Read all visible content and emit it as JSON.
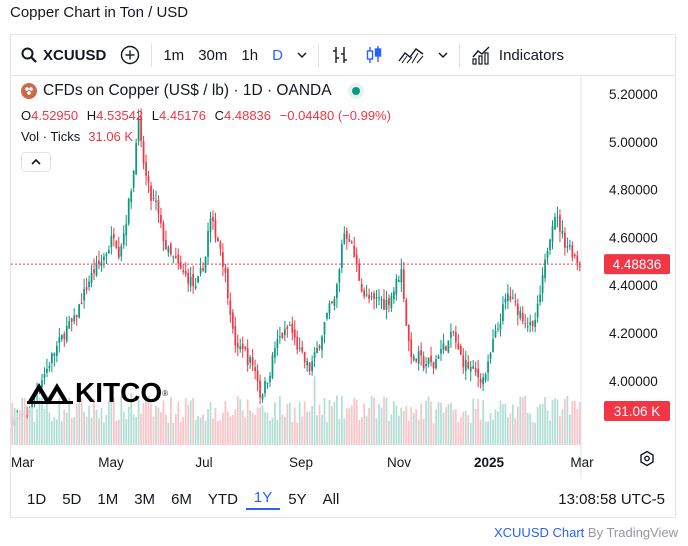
{
  "page_title": "Copper Chart in Ton / USD",
  "toolbar": {
    "symbol": "XCUUSD",
    "intervals": [
      "1m",
      "30m",
      "1h",
      "D"
    ],
    "active_interval": "D",
    "indicators_label": "Indicators"
  },
  "legend": {
    "instrument": "CFDs on Copper (US$ / lb) · 1D · OANDA",
    "open_label": "O",
    "open": "4.52950",
    "high_label": "H",
    "high": "4.53542",
    "low_label": "L",
    "low": "4.45176",
    "close_label": "C",
    "close": "4.48836",
    "change": "−0.04480 (−0.99%)",
    "volume_label": "Vol · Ticks",
    "volume_value": "31.06 K"
  },
  "range_buttons": [
    "1D",
    "5D",
    "1M",
    "3M",
    "6M",
    "YTD",
    "1Y",
    "5Y",
    "All"
  ],
  "active_range": "1Y",
  "clock": "13:08:58 UTC-5",
  "credit": {
    "symbol": "XCUUSD Chart",
    "by": "By TradingView"
  },
  "watermark": "KITCO",
  "colors": {
    "up": "#089981",
    "down": "#f23645",
    "accent": "#2962ff",
    "up_vol": "#b2dfd5",
    "down_vol": "#fac3c7"
  },
  "chart_data": {
    "type": "candlestick",
    "y_axis_labels": [
      "5.20000",
      "5.00000",
      "4.80000",
      "4.60000",
      "4.40000",
      "4.20000",
      "4.00000"
    ],
    "y_ticks": [
      5.2,
      5.0,
      4.8,
      4.6,
      4.4,
      4.2,
      4.0
    ],
    "ylim": [
      3.815,
      5.28
    ],
    "x_tick_labels": [
      "Mar",
      "May",
      "Jul",
      "Sep",
      "Nov",
      "2025",
      "Mar"
    ],
    "last_price": 4.48836,
    "last_price_label": "4.48836",
    "volume_label": "31.06 K",
    "close_path": [
      [
        0,
        3.84
      ],
      [
        3,
        3.83
      ],
      [
        6,
        3.86
      ],
      [
        9,
        3.95
      ],
      [
        11,
        3.99
      ],
      [
        14,
        4.05
      ],
      [
        16,
        4.1
      ],
      [
        19,
        4.16
      ],
      [
        22,
        4.22
      ],
      [
        25,
        4.25
      ],
      [
        28,
        4.34
      ],
      [
        31,
        4.42
      ],
      [
        33,
        4.46
      ],
      [
        36,
        4.5
      ],
      [
        39,
        4.56
      ],
      [
        41,
        4.62
      ],
      [
        43,
        4.54
      ],
      [
        45,
        4.62
      ],
      [
        47,
        4.74
      ],
      [
        49,
        4.88
      ],
      [
        50,
        5.02
      ],
      [
        51,
        5.08
      ],
      [
        52,
        4.98
      ],
      [
        54,
        4.85
      ],
      [
        56,
        4.76
      ],
      [
        58,
        4.74
      ],
      [
        60,
        4.64
      ],
      [
        62,
        4.56
      ],
      [
        64,
        4.52
      ],
      [
        66,
        4.5
      ],
      [
        68,
        4.46
      ],
      [
        70,
        4.44
      ],
      [
        72,
        4.42
      ],
      [
        74,
        4.38
      ],
      [
        76,
        4.45
      ],
      [
        78,
        4.52
      ],
      [
        79,
        4.62
      ],
      [
        80,
        4.67
      ],
      [
        82,
        4.62
      ],
      [
        84,
        4.56
      ],
      [
        86,
        4.44
      ],
      [
        88,
        4.3
      ],
      [
        89,
        4.2
      ],
      [
        91,
        4.12
      ],
      [
        93,
        4.15
      ],
      [
        95,
        4.09
      ],
      [
        97,
        4.07
      ],
      [
        99,
        4.01
      ],
      [
        100,
        3.94
      ],
      [
        102,
        3.98
      ],
      [
        104,
        4.04
      ],
      [
        106,
        4.14
      ],
      [
        108,
        4.18
      ],
      [
        110,
        4.2
      ],
      [
        112,
        4.23
      ],
      [
        114,
        4.17
      ],
      [
        116,
        4.12
      ],
      [
        118,
        4.08
      ],
      [
        120,
        4.05
      ],
      [
        122,
        4.1
      ],
      [
        124,
        4.16
      ],
      [
        126,
        4.24
      ],
      [
        128,
        4.3
      ],
      [
        130,
        4.33
      ],
      [
        132,
        4.46
      ],
      [
        133,
        4.58
      ],
      [
        134,
        4.62
      ],
      [
        136,
        4.6
      ],
      [
        138,
        4.52
      ],
      [
        140,
        4.43
      ],
      [
        142,
        4.36
      ],
      [
        144,
        4.34
      ],
      [
        146,
        4.33
      ],
      [
        148,
        4.35
      ],
      [
        150,
        4.32
      ],
      [
        152,
        4.34
      ],
      [
        154,
        4.38
      ],
      [
        156,
        4.44
      ],
      [
        157,
        4.46
      ],
      [
        158,
        4.36
      ],
      [
        159,
        4.24
      ],
      [
        160,
        4.16
      ],
      [
        162,
        4.08
      ],
      [
        164,
        4.1
      ],
      [
        166,
        4.07
      ],
      [
        168,
        4.08
      ],
      [
        170,
        4.06
      ],
      [
        172,
        4.12
      ],
      [
        174,
        4.14
      ],
      [
        176,
        4.16
      ],
      [
        178,
        4.2
      ],
      [
        180,
        4.12
      ],
      [
        182,
        4.08
      ],
      [
        184,
        4.06
      ],
      [
        186,
        4.04
      ],
      [
        188,
        4.02
      ],
      [
        190,
        4.01
      ],
      [
        192,
        4.06
      ],
      [
        194,
        4.16
      ],
      [
        196,
        4.22
      ],
      [
        198,
        4.3
      ],
      [
        200,
        4.36
      ],
      [
        202,
        4.33
      ],
      [
        204,
        4.3
      ],
      [
        206,
        4.27
      ],
      [
        208,
        4.24
      ],
      [
        210,
        4.21
      ],
      [
        212,
        4.3
      ],
      [
        214,
        4.42
      ],
      [
        216,
        4.56
      ],
      [
        218,
        4.67
      ],
      [
        219,
        4.7
      ],
      [
        221,
        4.64
      ],
      [
        223,
        4.58
      ],
      [
        225,
        4.56
      ],
      [
        227,
        4.52
      ],
      [
        229,
        4.49
      ]
    ],
    "n_bars": 230
  }
}
